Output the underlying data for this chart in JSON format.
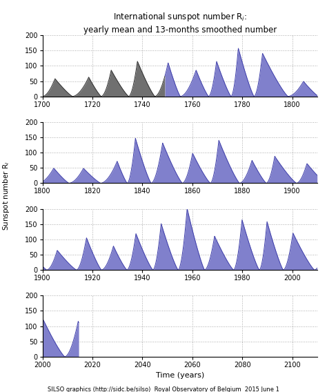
{
  "title": "International sunspot number R$_i$:\nyearly mean and 13-months smoothed number",
  "ylabel": "Sunspot number R$_i$",
  "xlabel": "Time (years)",
  "footer": "SILSO graphics (http://sidc.be/silso)  Royal Observatory of Belgium  2015 June 1",
  "panels": [
    {
      "xmin": 1700,
      "xmax": 1810,
      "xticks": [
        1700,
        1720,
        1740,
        1760,
        1780,
        1800
      ]
    },
    {
      "xmin": 1800,
      "xmax": 1910,
      "xticks": [
        1800,
        1820,
        1840,
        1860,
        1880,
        1900
      ]
    },
    {
      "xmin": 1900,
      "xmax": 2010,
      "xticks": [
        1900,
        1920,
        1940,
        1960,
        1980,
        2000
      ]
    },
    {
      "xmin": 2000,
      "xmax": 2110,
      "xticks": [
        2000,
        2020,
        2040,
        2060,
        2080,
        2100
      ]
    }
  ],
  "ymax": 200,
  "yticks": [
    0,
    50,
    100,
    150,
    200
  ],
  "fill_color_blue": "#8080cc",
  "fill_color_gray": "#707070",
  "line_color_blue": "#4040aa",
  "line_color_gray": "#303030",
  "background_color": "#ffffff",
  "grid_color": "#aaaaaa",
  "gray_cutoff_year": 1749,
  "data_end_year": 2014.5
}
